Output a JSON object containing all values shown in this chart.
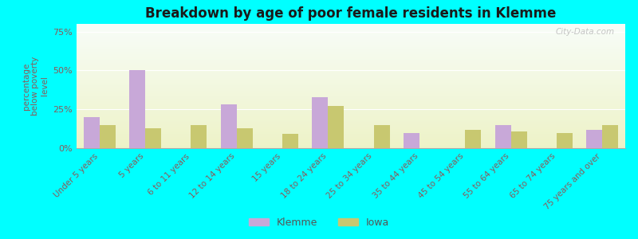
{
  "title": "Breakdown by age of poor female residents in Klemme",
  "ylabel": "percentage\nbelow poverty\nlevel",
  "categories": [
    "Under 5 years",
    "5 years",
    "6 to 11 years",
    "12 to 14 years",
    "15 years",
    "18 to 24 years",
    "25 to 34 years",
    "35 to 44 years",
    "45 to 54 years",
    "55 to 64 years",
    "65 to 74 years",
    "75 years and over"
  ],
  "klemme_values": [
    20,
    50,
    0,
    28,
    0,
    33,
    0,
    10,
    0,
    15,
    0,
    12
  ],
  "iowa_values": [
    15,
    13,
    15,
    13,
    9,
    27,
    15,
    0,
    12,
    11,
    10,
    15
  ],
  "klemme_color": "#c8a8d8",
  "iowa_color": "#c8c870",
  "bar_width": 0.35,
  "ylim": [
    0,
    80
  ],
  "yticks": [
    0,
    25,
    50,
    75
  ],
  "ytick_labels": [
    "0%",
    "25%",
    "50%",
    "75%"
  ],
  "outer_bg": "#00ffff",
  "title_color": "#1a1a1a",
  "legend_klemme": "Klemme",
  "legend_iowa": "Iowa",
  "watermark": "City-Data.com"
}
